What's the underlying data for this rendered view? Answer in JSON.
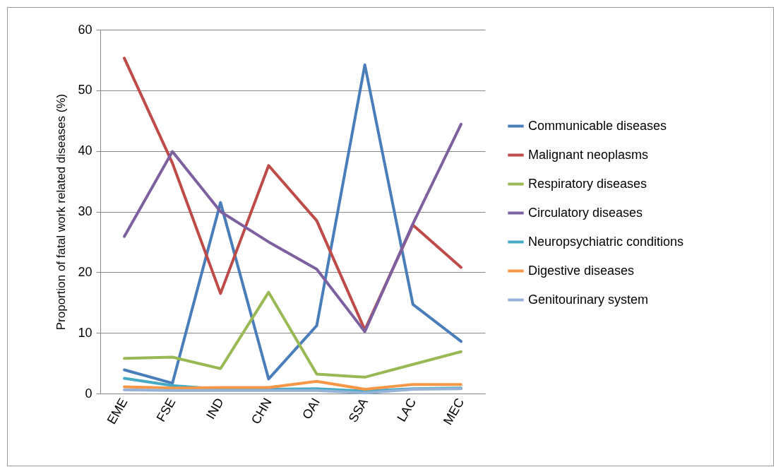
{
  "chart_data": {
    "type": "line",
    "ylabel": "Proportion of fatal work related diseases (%)",
    "categories": [
      "EME",
      "FSE",
      "IND",
      "CHN",
      "OAI",
      "SSA",
      "LAC",
      "MEC"
    ],
    "series": [
      {
        "name": "Communicable diseases",
        "color": "#4a7ebb",
        "values": [
          3.9,
          1.7,
          31.5,
          2.4,
          11.2,
          54.2,
          14.7,
          8.6
        ]
      },
      {
        "name": "Malignant neoplasms",
        "color": "#be4b48",
        "values": [
          55.3,
          38,
          16.5,
          37.6,
          28.5,
          10.5,
          27.8,
          20.8
        ]
      },
      {
        "name": "Respiratory diseases",
        "color": "#98b954",
        "values": [
          5.8,
          6,
          4.1,
          16.7,
          3.2,
          2.7,
          4.8,
          6.9
        ]
      },
      {
        "name": "Circulatory diseases",
        "color": "#7d60a0",
        "values": [
          25.9,
          39.9,
          30,
          25,
          20.5,
          10.2,
          28,
          44.4
        ]
      },
      {
        "name": "Neuropsychiatric conditions",
        "color": "#46aac5",
        "values": [
          2.5,
          1.3,
          0.7,
          0.7,
          0.8,
          0.4,
          0.8,
          0.9
        ]
      },
      {
        "name": "Digestive diseases",
        "color": "#f79646",
        "values": [
          1.1,
          0.9,
          1,
          1,
          2,
          0.7,
          1.5,
          1.5
        ]
      },
      {
        "name": "Genitourinary system",
        "color": "#95b3d7",
        "values": [
          0.6,
          0.5,
          0.5,
          0.5,
          0.5,
          0.1,
          0.7,
          0.8
        ]
      }
    ],
    "ylim": [
      0,
      60
    ],
    "yticks": [
      0,
      10,
      20,
      30,
      40,
      50,
      60
    ],
    "grid": "y",
    "legend": "right",
    "marker": "none",
    "line_style": "solid"
  }
}
